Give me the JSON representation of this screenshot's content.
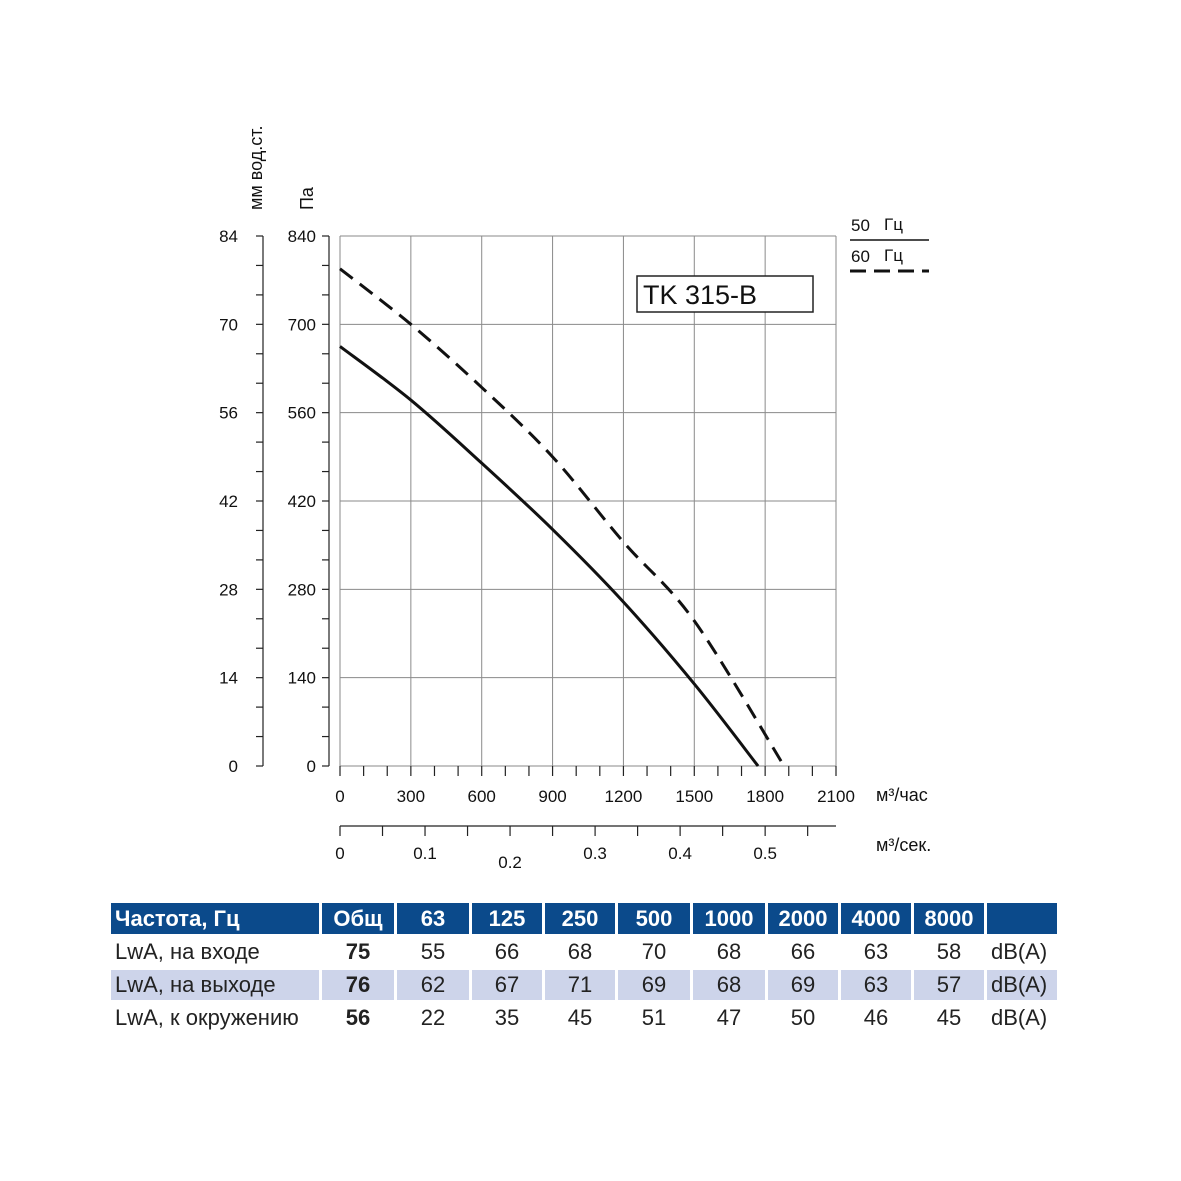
{
  "chart_data": {
    "type": "line",
    "model_label": "TK 315-B",
    "y_label_left": "мм вод.ст.",
    "y_label_right": "Па",
    "y_ticks_mm": [
      "84",
      "70",
      "56",
      "42",
      "28",
      "14",
      "0"
    ],
    "y_ticks_pa": [
      "840",
      "700",
      "560",
      "420",
      "280",
      "140",
      "0"
    ],
    "ylim": [
      0,
      840
    ],
    "x_label": "м³/час",
    "x_ticks": [
      "0",
      "300",
      "600",
      "900",
      "1200",
      "1500",
      "1800",
      "2100"
    ],
    "xlim": [
      0,
      2100
    ],
    "x2_label": "м³/сек.",
    "x2_ticks": [
      "0",
      "0.1",
      "0.2",
      "0.3",
      "0.4",
      "0.5"
    ],
    "legend": [
      {
        "hz": "50",
        "unit": "Гц",
        "style": "solid"
      },
      {
        "hz": "60",
        "unit": "Гц",
        "style": "dashed"
      }
    ],
    "series": [
      {
        "name": "50 Гц",
        "style": "solid",
        "x": [
          0,
          300,
          600,
          900,
          1200,
          1500,
          1770
        ],
        "y": [
          665,
          580,
          480,
          375,
          260,
          130,
          0
        ]
      },
      {
        "name": "60 Гц",
        "style": "dashed",
        "x": [
          0,
          300,
          600,
          900,
          1200,
          1500,
          1880
        ],
        "y": [
          788,
          700,
          600,
          490,
          355,
          230,
          0
        ]
      }
    ],
    "grid": true
  },
  "table": {
    "header": [
      "Частота, Гц",
      "Общ",
      "63",
      "125",
      "250",
      "500",
      "1000",
      "2000",
      "4000",
      "8000",
      ""
    ],
    "rows": [
      {
        "label": "LwA, на входе",
        "total": "75",
        "values": [
          "55",
          "66",
          "68",
          "70",
          "68",
          "66",
          "63",
          "58"
        ],
        "unit": "dB(A)"
      },
      {
        "label": "LwA, на выходе",
        "total": "76",
        "values": [
          "62",
          "67",
          "71",
          "69",
          "68",
          "69",
          "63",
          "57"
        ],
        "unit": "dB(A)"
      },
      {
        "label": "LwA, к окружению",
        "total": "56",
        "values": [
          "22",
          "35",
          "45",
          "51",
          "47",
          "50",
          "46",
          "45"
        ],
        "unit": "dB(A)"
      }
    ]
  },
  "colors": {
    "table_header": "#0b4a8b",
    "table_shade": "#cdd4ea",
    "line": "#111111",
    "grid": "#888888"
  }
}
